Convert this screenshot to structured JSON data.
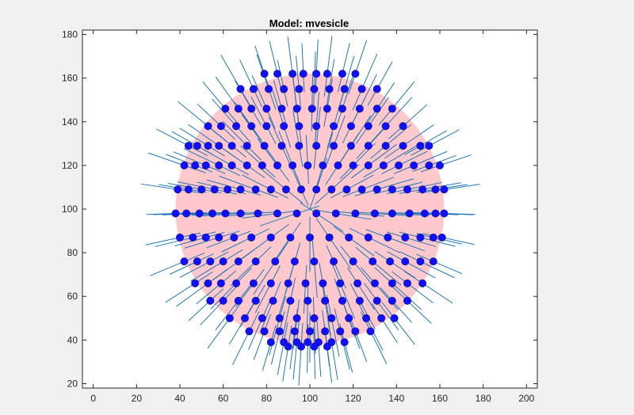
{
  "window": {
    "background_color": "#f0f0f0"
  },
  "chart_data": {
    "type": "scatter",
    "title": "Model: mvesicle",
    "xlabel": "",
    "ylabel": "",
    "xlim": [
      -5,
      205
    ],
    "ylim": [
      18,
      182
    ],
    "xticks": [
      0,
      20,
      40,
      60,
      80,
      100,
      120,
      140,
      160,
      180,
      200
    ],
    "yticks": [
      20,
      40,
      60,
      80,
      100,
      120,
      140,
      160,
      180
    ],
    "grid": false,
    "legend": "none",
    "colors": {
      "axes_background": "#ffffff",
      "vesicle_fill": "#ffc8cc",
      "point_fill": "#1010ff",
      "point_edge": "#1a1a8c",
      "normal_vector": "#1f77b4"
    },
    "vesicle": {
      "center": [
        100,
        100
      ],
      "radius_x": 62,
      "radius_y": 62
    },
    "normal_vector_length": 18,
    "rings": [
      {
        "y": 162,
        "x": [
          79,
          85,
          92,
          97,
          103,
          108,
          115,
          121
        ]
      },
      {
        "y": 155,
        "x": [
          68,
          74,
          81,
          88,
          95,
          102,
          109,
          116,
          124,
          131
        ]
      },
      {
        "y": 146,
        "x": [
          61,
          67,
          73,
          80,
          87,
          94,
          101,
          108,
          115,
          123,
          131,
          138
        ]
      },
      {
        "y": 138,
        "x": [
          53,
          59,
          66,
          73,
          80,
          88,
          95,
          103,
          111,
          119,
          127,
          135,
          143
        ]
      },
      {
        "y": 129,
        "x": [
          44,
          48,
          53,
          58,
          64,
          71,
          79,
          87,
          95,
          103,
          111,
          119,
          127,
          135,
          143,
          151,
          155
        ]
      },
      {
        "y": 120,
        "x": [
          42,
          47,
          52,
          58,
          64,
          71,
          78,
          85,
          92,
          99,
          106,
          113,
          120,
          127,
          134,
          141,
          148,
          155,
          160
        ]
      },
      {
        "y": 109,
        "x": [
          39,
          44,
          50,
          56,
          62,
          68,
          75,
          82,
          89,
          96,
          103,
          110,
          117,
          124,
          131,
          138,
          145,
          152,
          158,
          162
        ]
      },
      {
        "y": 98,
        "x": [
          38,
          43,
          49,
          55,
          61,
          68,
          76,
          85,
          94,
          103,
          112,
          121,
          130,
          138,
          146,
          153,
          158,
          162
        ]
      },
      {
        "y": 87,
        "x": [
          40,
          46,
          52,
          58,
          65,
          73,
          82,
          91,
          100,
          109,
          118,
          127,
          136,
          144,
          151,
          157,
          161
        ]
      },
      {
        "y": 76,
        "x": [
          42,
          48,
          54,
          60,
          67,
          75,
          84,
          93,
          102,
          111,
          120,
          129,
          137,
          144,
          151,
          157
        ]
      },
      {
        "y": 66,
        "x": [
          47,
          53,
          59,
          66,
          74,
          82,
          90,
          98,
          106,
          114,
          122,
          130,
          138,
          145,
          152
        ]
      },
      {
        "y": 58,
        "x": [
          54,
          60,
          67,
          75,
          83,
          91,
          99,
          107,
          115,
          123,
          131,
          138,
          145
        ]
      },
      {
        "y": 50,
        "x": [
          63,
          70,
          78,
          86,
          94,
          102,
          110,
          118,
          126,
          133,
          139
        ]
      },
      {
        "y": 44,
        "x": [
          72,
          79,
          86,
          93,
          100,
          107,
          114,
          121,
          128
        ]
      },
      {
        "y": 39,
        "x": [
          82,
          88,
          94,
          99,
          104,
          110,
          116
        ]
      },
      {
        "y": 37,
        "x": [
          90,
          96,
          102,
          108
        ]
      }
    ]
  }
}
